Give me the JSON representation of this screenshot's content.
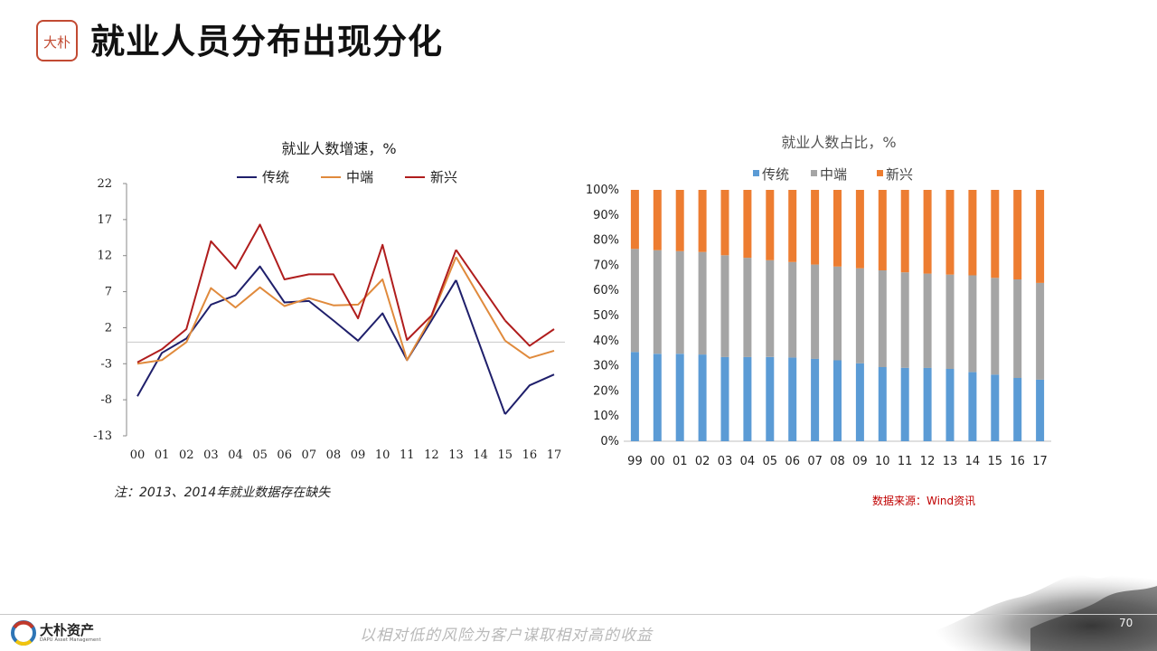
{
  "slide": {
    "title": "就业人员分布出现分化",
    "logo_text": "大朴",
    "note": "注：2013、2014年就业数据存在缺失",
    "source": "数据来源：Wind资讯",
    "slogan": "以相对低的风险为客户谋取相对高的收益",
    "brand_name": "大朴资产",
    "brand_sub": "DAPU Asset Management",
    "page_number": "70"
  },
  "colors": {
    "line_traditional": "#1f1f6b",
    "line_mid": "#e08a3c",
    "line_new": "#b01d1d",
    "bar_traditional": "#5b9bd5",
    "bar_mid": "#a5a5a5",
    "bar_new": "#ed7d31",
    "logo_red": "#c24a32"
  },
  "chart_data": [
    {
      "type": "line",
      "title": "就业人数增速，%",
      "categories": [
        "00",
        "01",
        "02",
        "03",
        "04",
        "05",
        "06",
        "07",
        "08",
        "09",
        "10",
        "11",
        "12",
        "13",
        "14",
        "15",
        "16",
        "17"
      ],
      "ylim": [
        -13,
        22
      ],
      "yticks": [
        22,
        17,
        12,
        7,
        2,
        -3,
        -8,
        -13
      ],
      "legend_position": "top",
      "grid": false,
      "series": [
        {
          "name": "传统",
          "values": [
            -7.5,
            -1.5,
            0.5,
            5.2,
            6.5,
            10.5,
            5.5,
            5.7,
            3,
            0.2,
            4,
            -2.5,
            3,
            8.6,
            null,
            -10,
            -6,
            -4.5
          ]
        },
        {
          "name": "中端",
          "values": [
            -3,
            -2.5,
            0,
            7.5,
            4.8,
            7.6,
            5,
            6.1,
            5.1,
            5.2,
            8.7,
            -2.5,
            3.5,
            11.8,
            null,
            0.2,
            -2.2,
            -1.2
          ]
        },
        {
          "name": "新兴",
          "values": [
            -2.8,
            -1,
            1.8,
            14,
            10.2,
            16.3,
            8.7,
            9.4,
            9.4,
            3.3,
            13.5,
            0.3,
            3.7,
            12.8,
            null,
            3,
            -0.5,
            1.8
          ]
        }
      ]
    },
    {
      "type": "bar",
      "stacked": "percent",
      "title": "就业人数占比，%",
      "categories": [
        "99",
        "00",
        "01",
        "02",
        "03",
        "04",
        "05",
        "06",
        "07",
        "08",
        "09",
        "10",
        "11",
        "12",
        "13",
        "14",
        "15",
        "16",
        "17"
      ],
      "ylim": [
        0,
        100
      ],
      "yticks": [
        "0%",
        "10%",
        "20%",
        "30%",
        "40%",
        "50%",
        "60%",
        "70%",
        "80%",
        "90%",
        "100%"
      ],
      "legend_position": "top",
      "grid": false,
      "series": [
        {
          "name": "传统",
          "values": [
            35.5,
            34.8,
            34.8,
            34.5,
            33.5,
            33.5,
            33.5,
            33.3,
            32.8,
            32.2,
            31,
            29.5,
            29.2,
            29.2,
            28.8,
            27.5,
            26.5,
            25.2,
            24.5
          ]
        },
        {
          "name": "中端",
          "values": [
            41,
            41.2,
            40.8,
            40.8,
            40.5,
            39.5,
            38.5,
            38,
            37.5,
            37.3,
            37.8,
            38.5,
            38,
            37.5,
            37.5,
            38.5,
            38.5,
            39.2,
            38.5
          ]
        },
        {
          "name": "新兴",
          "values": [
            23.5,
            24,
            24.4,
            24.7,
            26,
            27,
            28,
            28.7,
            29.7,
            30.5,
            31.2,
            32,
            32.8,
            33.3,
            33.7,
            34,
            35,
            35.6,
            37
          ]
        }
      ]
    }
  ]
}
